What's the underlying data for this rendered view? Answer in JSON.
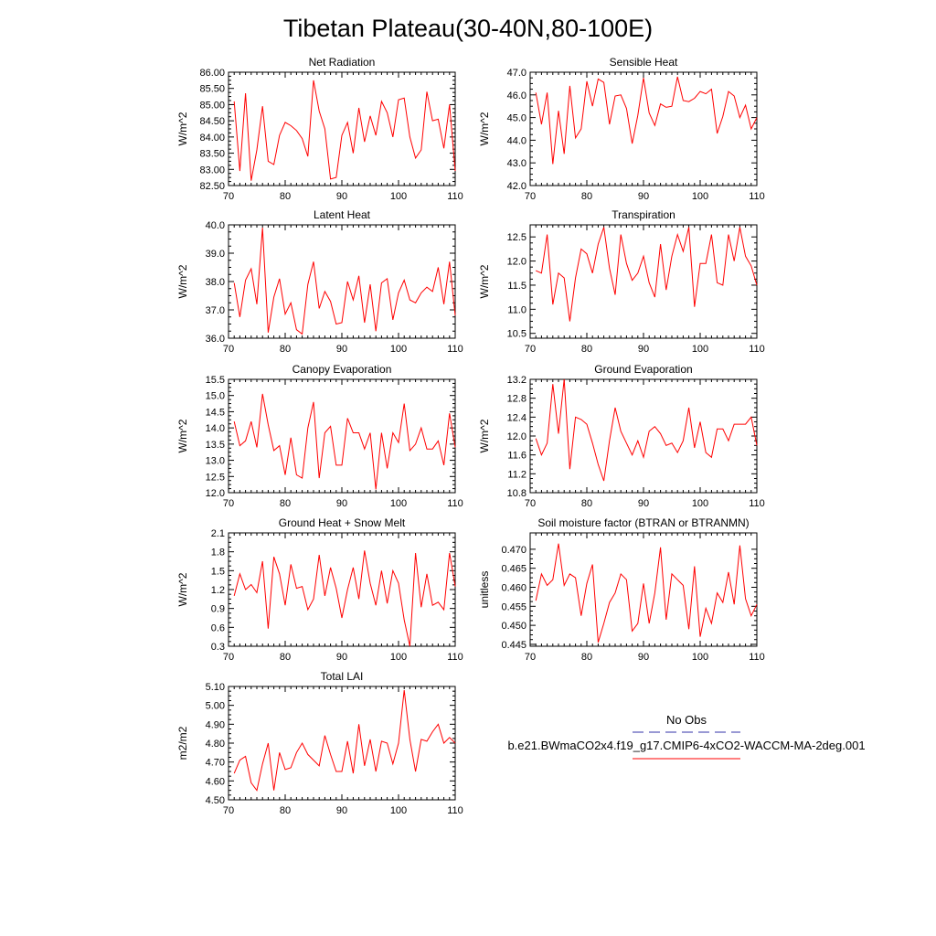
{
  "figure": {
    "title": "Tibetan Plateau(30-40N,80-100E)"
  },
  "legend": {
    "obs_label": "No Obs",
    "model_label": "b.e21.BWmaCO2x4.f19_g17.CMIP6-4xCO2-WACCM-MA-2deg.001",
    "obs_color": "#3333aa",
    "model_color": "#ff0000"
  },
  "chart_data": [
    {
      "type": "line",
      "title": "Net Radiation",
      "ylabel": "W/m^2",
      "xlim": [
        70,
        110
      ],
      "ylim": [
        82.5,
        86.0
      ],
      "xticks": [
        70,
        80,
        90,
        100,
        110
      ],
      "xtick_labels": [
        "70",
        "80",
        "90",
        "100",
        "110"
      ],
      "yticks": [
        82.5,
        83.0,
        83.5,
        84.0,
        84.5,
        85.0,
        85.5,
        86.0
      ],
      "ytick_labels": [
        "82.50",
        "83.00",
        "83.50",
        "84.00",
        "84.50",
        "85.00",
        "85.50",
        "86.00"
      ],
      "color": "#ff0000",
      "x0": 71,
      "values": [
        85.1,
        82.95,
        85.35,
        82.65,
        83.6,
        84.95,
        83.25,
        83.15,
        84.05,
        84.45,
        84.35,
        84.2,
        83.95,
        83.4,
        85.75,
        84.8,
        84.25,
        82.7,
        82.75,
        84.05,
        84.45,
        83.5,
        84.9,
        83.85,
        84.65,
        84.05,
        85.1,
        84.75,
        84.0,
        85.15,
        85.2,
        84.0,
        83.35,
        83.6,
        85.4,
        84.5,
        84.55,
        83.65,
        85.0,
        82.95
      ]
    },
    {
      "type": "line",
      "title": "Sensible Heat",
      "ylabel": "W/m^2",
      "xlim": [
        70,
        110
      ],
      "ylim": [
        42.0,
        47.0
      ],
      "xticks": [
        70,
        80,
        90,
        100,
        110
      ],
      "xtick_labels": [
        "70",
        "80",
        "90",
        "100",
        "110"
      ],
      "yticks": [
        42,
        43,
        44,
        45,
        46,
        47
      ],
      "ytick_labels": [
        "42.0",
        "43.0",
        "44.0",
        "45.0",
        "46.0",
        "47.0"
      ],
      "color": "#ff0000",
      "x0": 71,
      "values": [
        46.1,
        44.7,
        46.1,
        42.95,
        45.3,
        43.4,
        46.4,
        44.1,
        44.5,
        46.6,
        45.5,
        46.7,
        46.55,
        44.7,
        45.95,
        46.0,
        45.4,
        43.85,
        45.1,
        46.75,
        45.2,
        44.65,
        45.6,
        45.45,
        45.5,
        46.8,
        45.75,
        45.7,
        45.85,
        46.15,
        46.05,
        46.25,
        44.3,
        45.05,
        46.15,
        45.95,
        45.0,
        45.55,
        44.5,
        45.0
      ]
    },
    {
      "type": "line",
      "title": "Latent Heat",
      "ylabel": "W/m^2",
      "xlim": [
        70,
        110
      ],
      "ylim": [
        36.0,
        40.0
      ],
      "xticks": [
        70,
        80,
        90,
        100,
        110
      ],
      "xtick_labels": [
        "70",
        "80",
        "90",
        "100",
        "110"
      ],
      "yticks": [
        36,
        37,
        38,
        39,
        40
      ],
      "ytick_labels": [
        "36.0",
        "37.0",
        "38.0",
        "39.0",
        "40.0"
      ],
      "color": "#ff0000",
      "x0": 71,
      "values": [
        37.95,
        36.75,
        38.05,
        38.45,
        37.2,
        39.9,
        36.2,
        37.45,
        38.1,
        36.85,
        37.25,
        36.3,
        36.15,
        37.9,
        38.7,
        37.05,
        37.65,
        37.3,
        36.5,
        36.55,
        38.0,
        37.35,
        38.2,
        36.55,
        37.9,
        36.25,
        37.95,
        38.1,
        36.65,
        37.6,
        38.05,
        37.35,
        37.25,
        37.6,
        37.8,
        37.65,
        38.5,
        37.2,
        38.7,
        36.8
      ]
    },
    {
      "type": "line",
      "title": "Transpiration",
      "ylabel": "W/m^2",
      "xlim": [
        70,
        110
      ],
      "ylim": [
        10.4,
        12.75
      ],
      "xticks": [
        70,
        80,
        90,
        100,
        110
      ],
      "xtick_labels": [
        "70",
        "80",
        "90",
        "100",
        "110"
      ],
      "yticks": [
        10.5,
        11.0,
        11.5,
        12.0,
        12.5
      ],
      "ytick_labels": [
        "10.5",
        "11.0",
        "11.5",
        "12.0",
        "12.5"
      ],
      "color": "#ff0000",
      "x0": 71,
      "values": [
        11.8,
        11.75,
        12.55,
        11.1,
        11.75,
        11.65,
        10.75,
        11.65,
        12.25,
        12.15,
        11.75,
        12.35,
        12.7,
        11.85,
        11.3,
        12.55,
        11.95,
        11.6,
        11.75,
        12.1,
        11.55,
        11.25,
        12.35,
        11.4,
        12.1,
        12.55,
        12.2,
        12.7,
        11.05,
        11.95,
        11.95,
        12.55,
        11.55,
        11.5,
        12.55,
        12.0,
        12.7,
        12.1,
        11.9,
        11.5
      ]
    },
    {
      "type": "line",
      "title": "Canopy Evaporation",
      "ylabel": "W/m^2",
      "xlim": [
        70,
        110
      ],
      "ylim": [
        12.0,
        15.5
      ],
      "xticks": [
        70,
        80,
        90,
        100,
        110
      ],
      "xtick_labels": [
        "70",
        "80",
        "90",
        "100",
        "110"
      ],
      "yticks": [
        12.0,
        12.5,
        13.0,
        13.5,
        14.0,
        14.5,
        15.0,
        15.5
      ],
      "ytick_labels": [
        "12.0",
        "12.5",
        "13.0",
        "13.5",
        "14.0",
        "14.5",
        "15.0",
        "15.5"
      ],
      "color": "#ff0000",
      "x0": 71,
      "values": [
        14.2,
        13.45,
        13.6,
        14.2,
        13.4,
        15.05,
        14.1,
        13.3,
        13.45,
        12.55,
        13.7,
        12.55,
        12.45,
        14.0,
        14.8,
        12.45,
        13.85,
        14.05,
        12.85,
        12.85,
        14.3,
        13.85,
        13.85,
        13.35,
        13.85,
        12.1,
        13.85,
        12.75,
        13.85,
        13.55,
        14.75,
        13.3,
        13.5,
        14.0,
        13.35,
        13.35,
        13.6,
        12.85,
        14.45,
        13.4
      ]
    },
    {
      "type": "line",
      "title": "Ground Evaporation",
      "ylabel": "W/m^2",
      "xlim": [
        70,
        110
      ],
      "ylim": [
        10.8,
        13.2
      ],
      "xticks": [
        70,
        80,
        90,
        100,
        110
      ],
      "xtick_labels": [
        "70",
        "80",
        "90",
        "100",
        "110"
      ],
      "yticks": [
        10.8,
        11.2,
        11.6,
        12.0,
        12.4,
        12.8,
        13.2
      ],
      "ytick_labels": [
        "10.8",
        "11.2",
        "11.6",
        "12.0",
        "12.4",
        "12.8",
        "13.2"
      ],
      "color": "#ff0000",
      "x0": 71,
      "values": [
        11.95,
        11.6,
        11.85,
        13.1,
        12.05,
        13.2,
        11.3,
        12.4,
        12.35,
        12.25,
        11.85,
        11.4,
        11.05,
        11.9,
        12.6,
        12.1,
        11.85,
        11.6,
        11.9,
        11.55,
        12.1,
        12.2,
        12.05,
        11.8,
        11.85,
        11.65,
        11.9,
        12.6,
        11.75,
        12.3,
        11.65,
        11.55,
        12.15,
        12.15,
        11.9,
        12.25,
        12.25,
        12.25,
        12.4,
        11.8
      ]
    },
    {
      "type": "line",
      "title": "Ground Heat + Snow Melt",
      "ylabel": "W/m^2",
      "xlim": [
        70,
        110
      ],
      "ylim": [
        0.3,
        2.1
      ],
      "xticks": [
        70,
        80,
        90,
        100,
        110
      ],
      "xtick_labels": [
        "70",
        "80",
        "90",
        "100",
        "110"
      ],
      "yticks": [
        0.3,
        0.6,
        0.9,
        1.2,
        1.5,
        1.8,
        2.1
      ],
      "ytick_labels": [
        "0.3",
        "0.6",
        "0.9",
        "1.2",
        "1.5",
        "1.8",
        "2.1"
      ],
      "color": "#ff0000",
      "x0": 71,
      "values": [
        1.1,
        1.45,
        1.2,
        1.28,
        1.15,
        1.65,
        0.58,
        1.72,
        1.45,
        0.95,
        1.6,
        1.22,
        1.25,
        0.88,
        1.05,
        1.75,
        1.1,
        1.55,
        1.22,
        0.75,
        1.2,
        1.55,
        1.05,
        1.82,
        1.3,
        0.95,
        1.5,
        0.98,
        1.5,
        1.3,
        0.72,
        0.3,
        1.78,
        0.92,
        1.45,
        0.95,
        1.0,
        0.88,
        1.78,
        1.25
      ]
    },
    {
      "type": "line",
      "title": "Soil moisture factor (BTRAN or BTRANMN)",
      "ylabel": "unitless",
      "xlim": [
        70,
        110
      ],
      "ylim": [
        0.4445,
        0.4743
      ],
      "xticks": [
        70,
        80,
        90,
        100,
        110
      ],
      "xtick_labels": [
        "70",
        "80",
        "90",
        "100",
        "110"
      ],
      "yticks": [
        0.445,
        0.45,
        0.455,
        0.46,
        0.465,
        0.47
      ],
      "ytick_labels": [
        "0.445",
        "0.450",
        "0.455",
        "0.460",
        "0.465",
        "0.470"
      ],
      "color": "#ff0000",
      "x0": 71,
      "values": [
        0.4565,
        0.4635,
        0.4605,
        0.462,
        0.4715,
        0.4605,
        0.4635,
        0.4625,
        0.4525,
        0.461,
        0.466,
        0.4455,
        0.4505,
        0.456,
        0.4585,
        0.4635,
        0.462,
        0.4485,
        0.4505,
        0.461,
        0.4505,
        0.4585,
        0.4705,
        0.4515,
        0.4635,
        0.462,
        0.4605,
        0.449,
        0.4655,
        0.447,
        0.4545,
        0.4505,
        0.4585,
        0.456,
        0.464,
        0.4555,
        0.471,
        0.457,
        0.4525,
        0.4555
      ]
    },
    {
      "type": "line",
      "title": "Total LAI",
      "ylabel": "m2/m2",
      "xlim": [
        70,
        110
      ],
      "ylim": [
        4.5,
        5.1
      ],
      "xticks": [
        70,
        80,
        90,
        100,
        110
      ],
      "xtick_labels": [
        "70",
        "80",
        "90",
        "100",
        "110"
      ],
      "yticks": [
        4.5,
        4.6,
        4.7,
        4.8,
        4.9,
        5.0,
        5.1
      ],
      "ytick_labels": [
        "4.50",
        "4.60",
        "4.70",
        "4.80",
        "4.90",
        "5.00",
        "5.10"
      ],
      "color": "#ff0000",
      "x0": 71,
      "values": [
        4.64,
        4.71,
        4.73,
        4.59,
        4.55,
        4.69,
        4.8,
        4.55,
        4.75,
        4.66,
        4.67,
        4.75,
        4.8,
        4.74,
        4.71,
        4.68,
        4.84,
        4.74,
        4.65,
        4.65,
        4.81,
        4.64,
        4.9,
        4.68,
        4.82,
        4.65,
        4.81,
        4.8,
        4.69,
        4.8,
        5.08,
        4.82,
        4.65,
        4.82,
        4.81,
        4.86,
        4.9,
        4.8,
        4.83,
        4.8
      ]
    }
  ]
}
